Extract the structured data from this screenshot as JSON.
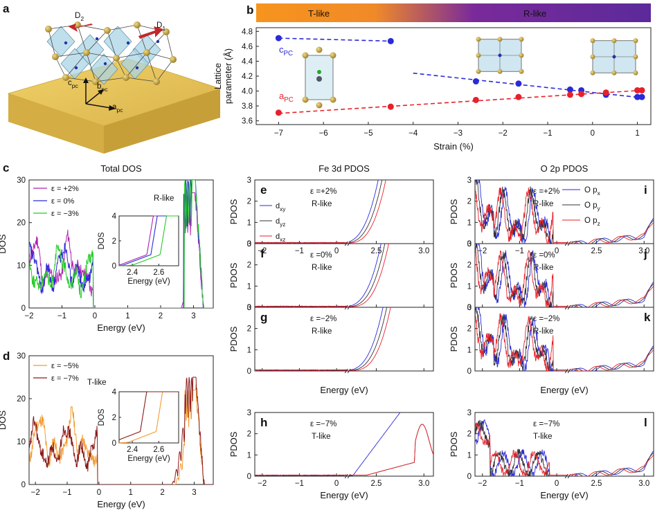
{
  "colors": {
    "blue": "#2a2ad8",
    "red": "#e8202a",
    "green": "#22cc22",
    "purple": "#b020b0",
    "black": "#333333",
    "orange": "#f29a2e",
    "darkred": "#8b1a1a",
    "violet": "#6a2aa0",
    "substrate": "#e8c65a",
    "arrow": "#c0282c"
  },
  "panel_a": {
    "letter": "a",
    "labels": {
      "d2": "D",
      "d2_sub": "2",
      "d1": "D",
      "d1_sub": "1",
      "c": "c",
      "c_sub": "pc",
      "b": "b",
      "b_sub": "pc",
      "a": "a",
      "a_sub": "pc"
    }
  },
  "chart_data": [
    {
      "id": "b",
      "type": "scatter",
      "letter": "b",
      "phase_bar": {
        "left": "T-like",
        "right": "R-like"
      },
      "xlabel": "Strain (%)",
      "ylabel": "Lattice parameter (Å)",
      "ylabel_lines": [
        "Lattice",
        "parameter (Å)"
      ],
      "xlim": [
        -7.5,
        1.3
      ],
      "ylim": [
        3.55,
        4.85
      ],
      "xticks": [
        -7,
        -6,
        -5,
        -4,
        -3,
        -2,
        -1,
        0,
        1
      ],
      "yticks": [
        3.6,
        3.8,
        4.0,
        4.2,
        4.4,
        4.6,
        4.8
      ],
      "series": [
        {
          "name": "c",
          "sub": "PC",
          "color": "blue",
          "points": [
            [
              -7,
              4.71
            ],
            [
              -4.5,
              4.67
            ],
            [
              -2.6,
              4.13
            ],
            [
              -1.65,
              4.1
            ],
            [
              -0.5,
              4.02
            ],
            [
              -0.25,
              4.01
            ],
            [
              0.3,
              3.95
            ],
            [
              1.0,
              3.92
            ],
            [
              1.1,
              3.92
            ]
          ],
          "fit_lines": [
            [
              [
                -7,
                4.71
              ],
              [
                -4.5,
                4.67
              ]
            ],
            [
              [
                -4,
                4.24
              ],
              [
                1.1,
                3.91
              ]
            ]
          ]
        },
        {
          "name": "a",
          "sub": "PC",
          "color": "red",
          "points": [
            [
              -7,
              3.71
            ],
            [
              -4.5,
              3.79
            ],
            [
              -2.6,
              3.88
            ],
            [
              -1.65,
              3.92
            ],
            [
              -0.5,
              3.95
            ],
            [
              -0.25,
              3.96
            ],
            [
              0.3,
              3.98
            ],
            [
              1.0,
              4.01
            ],
            [
              1.1,
              4.01
            ]
          ],
          "fit_lines": [
            [
              [
                -7,
                3.7
              ],
              [
                1.1,
                4.01
              ]
            ]
          ]
        }
      ]
    },
    {
      "id": "c",
      "type": "line",
      "letter": "c",
      "title": "Total DOS",
      "xlabel": "Energy (eV)",
      "ylabel": "DOS",
      "xlim": [
        -2,
        3.6
      ],
      "ylim": [
        0,
        30
      ],
      "xticks": [
        -2,
        -1,
        0,
        1,
        2,
        3
      ],
      "yticks": [
        0,
        10,
        20,
        30
      ],
      "phase": "R-like",
      "series": [
        {
          "name": "ε = +2%",
          "color": "purple",
          "vb_phase": 0.0,
          "vb_scale": 1.08,
          "edge": 2.55,
          "cb_start": 2.62,
          "peak_h": 27
        },
        {
          "name": "ε = 0%",
          "color": "blue",
          "vb_phase": 0.9,
          "vb_scale": 1.0,
          "edge": 2.58,
          "cb_start": 2.66,
          "peak_h": 30
        },
        {
          "name": "ε = −3%",
          "color": "green",
          "vb_phase": 1.8,
          "vb_scale": 0.93,
          "edge": 2.65,
          "cb_start": 2.72,
          "peak_h": 30
        }
      ],
      "inset": {
        "xlabel": "Energy (eV)",
        "ylabel": "DOS",
        "xlim": [
          2.3,
          2.75
        ],
        "ylim": [
          0,
          4
        ],
        "xticks": [
          2.4,
          2.6
        ],
        "yticks": [
          0,
          2,
          4
        ]
      }
    },
    {
      "id": "d",
      "type": "line",
      "letter": "d",
      "xlabel": "Energy (eV)",
      "ylabel": "DOS",
      "xlim": [
        -2.2,
        3.6
      ],
      "ylim": [
        0,
        30
      ],
      "xticks": [
        -2,
        -1,
        0,
        1,
        2,
        3
      ],
      "yticks": [
        0,
        10,
        20,
        30
      ],
      "phase": "T-like",
      "series": [
        {
          "name": "ε = −5%",
          "color": "orange",
          "vb_phase": 0.3,
          "vb_scale": 1.1,
          "edge": 2.62,
          "cb_start": 2.4,
          "peak_h": 22
        },
        {
          "name": "ε = −7%",
          "color": "darkred",
          "vb_phase": 1.4,
          "vb_scale": 0.95,
          "edge": 2.5,
          "cb_start": 2.3,
          "peak_h": 25
        }
      ],
      "inset": {
        "xlabel": "Energy (eV)",
        "ylabel": "DOS",
        "xlim": [
          2.3,
          2.75
        ],
        "ylim": [
          0,
          4
        ],
        "xticks": [
          2.4,
          2.6
        ],
        "yticks": [
          0,
          2,
          4
        ]
      }
    },
    {
      "id": "fe",
      "type": "line",
      "title": "Fe 3d PDOS",
      "xlabel": "Energy (eV)",
      "ylabel": "PDOS",
      "xticks": [
        -2,
        -1,
        0,
        2.5,
        3.0
      ],
      "xticklabels": [
        "−2",
        "−1",
        "0",
        "2.5",
        "3.0"
      ],
      "yticks": [
        0,
        1,
        2,
        3
      ],
      "legend": [
        {
          "name": "d",
          "sub": "xy",
          "color": "blue"
        },
        {
          "name": "d",
          "sub": "yz",
          "color": "black"
        },
        {
          "name": "d",
          "sub": "xz",
          "color": "red"
        }
      ],
      "panels": [
        {
          "letter": "e",
          "strain": "ε =+2%",
          "phase": "R-like",
          "edge": 2.55
        },
        {
          "letter": "f",
          "strain": "ε =0%",
          "phase": "R-like",
          "edge": 2.58
        },
        {
          "letter": "g",
          "strain": "ε =−2%",
          "phase": "R-like",
          "edge": 2.6
        },
        {
          "letter": "h",
          "strain": "ε =−7%",
          "phase": "T-like",
          "edge": 2.3
        }
      ]
    },
    {
      "id": "o",
      "type": "line",
      "title": "O 2p PDOS",
      "xlabel": "Energy (eV)",
      "ylabel": "PDOS",
      "xticks": [
        -2,
        -1,
        0,
        2.5,
        3.0
      ],
      "xticklabels": [
        "−2",
        "−1",
        "0",
        "2.5",
        "3.0"
      ],
      "yticks": [
        0,
        1,
        2,
        3
      ],
      "legend": [
        {
          "name": "O p",
          "sub": "x",
          "color": "blue"
        },
        {
          "name": "O p",
          "sub": "y",
          "color": "black"
        },
        {
          "name": "O p",
          "sub": "z",
          "color": "red"
        }
      ],
      "panels": [
        {
          "letter": "i",
          "strain": "ε =+2%",
          "phase": "R-like"
        },
        {
          "letter": "j",
          "strain": "ε =0%",
          "phase": "R-like"
        },
        {
          "letter": "k",
          "strain": "ε =−2%",
          "phase": "R-like"
        },
        {
          "letter": "l",
          "strain": "ε =−7%",
          "phase": "T-like"
        }
      ]
    }
  ]
}
